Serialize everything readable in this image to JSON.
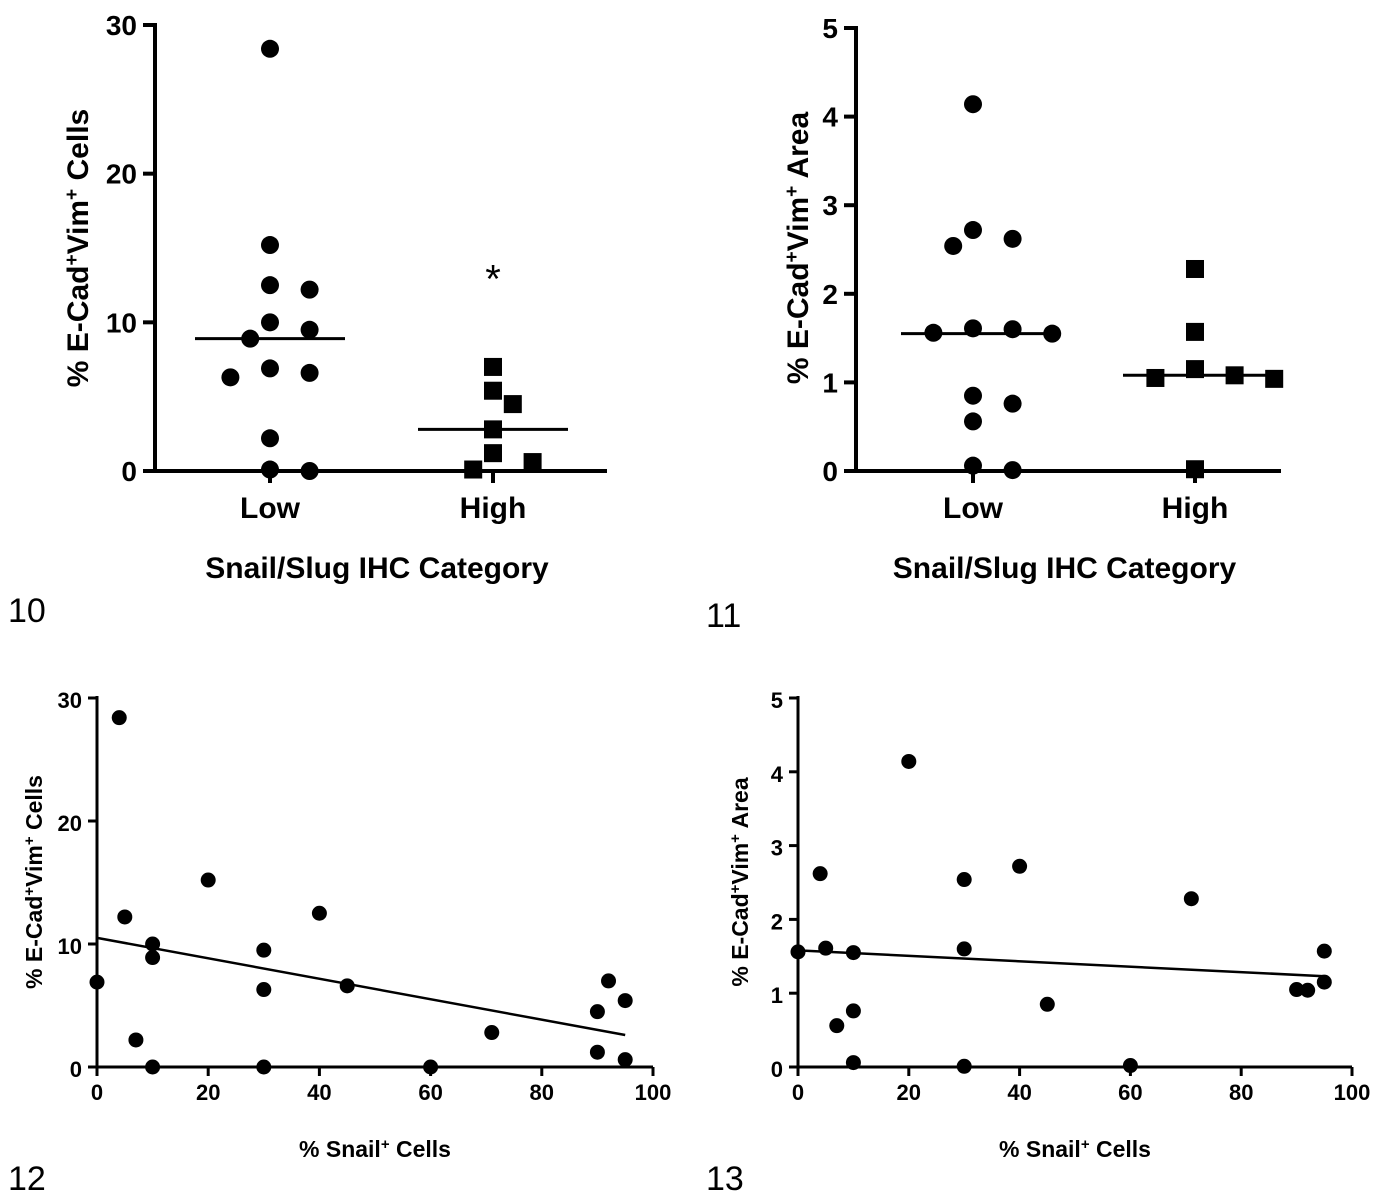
{
  "chart_data": [
    {
      "type": "scatter",
      "panel_label": "10",
      "xlabel": "Snail/Slug IHC Category",
      "ylabel": [
        "% E-Cad",
        "+",
        "Vim",
        "+",
        " Cells"
      ],
      "categories": [
        "Low",
        "High"
      ],
      "ylim": [
        0,
        30
      ],
      "yticks": [
        0,
        10,
        20,
        30
      ],
      "series": [
        {
          "category": "Low",
          "marker": "circle",
          "median": 8.9,
          "values": [
            28.4,
            15.2,
            12.5,
            12.2,
            10.0,
            9.5,
            8.9,
            6.9,
            6.6,
            6.3,
            2.2,
            0.1,
            0.0
          ]
        },
        {
          "category": "High",
          "marker": "square",
          "median": 2.8,
          "values": [
            7.0,
            5.4,
            4.5,
            2.8,
            1.2,
            0.6,
            0.1
          ]
        }
      ],
      "annotations": [
        {
          "text": "*",
          "category": "High",
          "y": 13.5
        }
      ],
      "grid": false
    },
    {
      "type": "scatter",
      "panel_label": "11",
      "xlabel": "Snail/Slug IHC Category",
      "ylabel": [
        "% E-Cad",
        "+",
        "Vim",
        "+",
        " Area"
      ],
      "categories": [
        "Low",
        "High"
      ],
      "ylim": [
        0,
        5
      ],
      "yticks": [
        0,
        1,
        2,
        3,
        4,
        5
      ],
      "series": [
        {
          "category": "Low",
          "marker": "circle",
          "median": 1.55,
          "values": [
            4.14,
            2.72,
            2.62,
            2.54,
            1.61,
            1.6,
            1.56,
            1.55,
            0.85,
            0.76,
            0.56,
            0.06,
            0.01
          ]
        },
        {
          "category": "High",
          "marker": "square",
          "median": 1.08,
          "values": [
            2.28,
            1.57,
            1.15,
            1.08,
            1.05,
            1.04,
            0.02
          ]
        }
      ],
      "grid": false
    },
    {
      "type": "scatter",
      "panel_label": "12",
      "xlabel": [
        "% Snail",
        "+",
        " Cells"
      ],
      "ylabel": [
        "% E-Cad",
        "+",
        "Vim",
        "+",
        " Cells"
      ],
      "xlim": [
        0,
        100
      ],
      "ylim": [
        0,
        30
      ],
      "xticks": [
        0,
        20,
        40,
        60,
        80,
        100
      ],
      "yticks": [
        0,
        10,
        20,
        30
      ],
      "points": [
        {
          "x": 0,
          "y": 6.9
        },
        {
          "x": 4,
          "y": 28.4
        },
        {
          "x": 5,
          "y": 12.2
        },
        {
          "x": 7,
          "y": 2.2
        },
        {
          "x": 10,
          "y": 10.0
        },
        {
          "x": 10,
          "y": 8.9
        },
        {
          "x": 10,
          "y": 0.0
        },
        {
          "x": 20,
          "y": 15.2
        },
        {
          "x": 30,
          "y": 9.5
        },
        {
          "x": 30,
          "y": 6.3
        },
        {
          "x": 30,
          "y": 0.0
        },
        {
          "x": 40,
          "y": 12.5
        },
        {
          "x": 45,
          "y": 6.6
        },
        {
          "x": 60,
          "y": 0.0
        },
        {
          "x": 71,
          "y": 2.8
        },
        {
          "x": 90,
          "y": 4.5
        },
        {
          "x": 90,
          "y": 1.2
        },
        {
          "x": 92,
          "y": 7.0
        },
        {
          "x": 95,
          "y": 5.4
        },
        {
          "x": 95,
          "y": 0.6
        }
      ],
      "fit_line": {
        "x": [
          0,
          95
        ],
        "y": [
          10.5,
          2.6
        ]
      },
      "grid": false
    },
    {
      "type": "scatter",
      "panel_label": "13",
      "xlabel": [
        "% Snail",
        "+",
        " Cells"
      ],
      "ylabel": [
        "% E-Cad",
        "+",
        "Vim",
        "+",
        " Area"
      ],
      "xlim": [
        0,
        100
      ],
      "ylim": [
        0,
        5
      ],
      "xticks": [
        0,
        20,
        40,
        60,
        80,
        100
      ],
      "yticks": [
        0,
        1,
        2,
        3,
        4,
        5
      ],
      "points": [
        {
          "x": 0,
          "y": 1.56
        },
        {
          "x": 4,
          "y": 2.62
        },
        {
          "x": 5,
          "y": 1.61
        },
        {
          "x": 7,
          "y": 0.56
        },
        {
          "x": 10,
          "y": 1.55
        },
        {
          "x": 10,
          "y": 0.76
        },
        {
          "x": 10,
          "y": 0.06
        },
        {
          "x": 20,
          "y": 4.14
        },
        {
          "x": 30,
          "y": 2.54
        },
        {
          "x": 30,
          "y": 1.6
        },
        {
          "x": 30,
          "y": 0.01
        },
        {
          "x": 40,
          "y": 2.72
        },
        {
          "x": 45,
          "y": 0.85
        },
        {
          "x": 60,
          "y": 0.02
        },
        {
          "x": 71,
          "y": 2.28
        },
        {
          "x": 90,
          "y": 1.05
        },
        {
          "x": 92,
          "y": 1.04
        },
        {
          "x": 95,
          "y": 1.57
        },
        {
          "x": 95,
          "y": 1.15
        }
      ],
      "fit_line": {
        "x": [
          0,
          95
        ],
        "y": [
          1.58,
          1.23
        ]
      },
      "grid": false
    }
  ]
}
